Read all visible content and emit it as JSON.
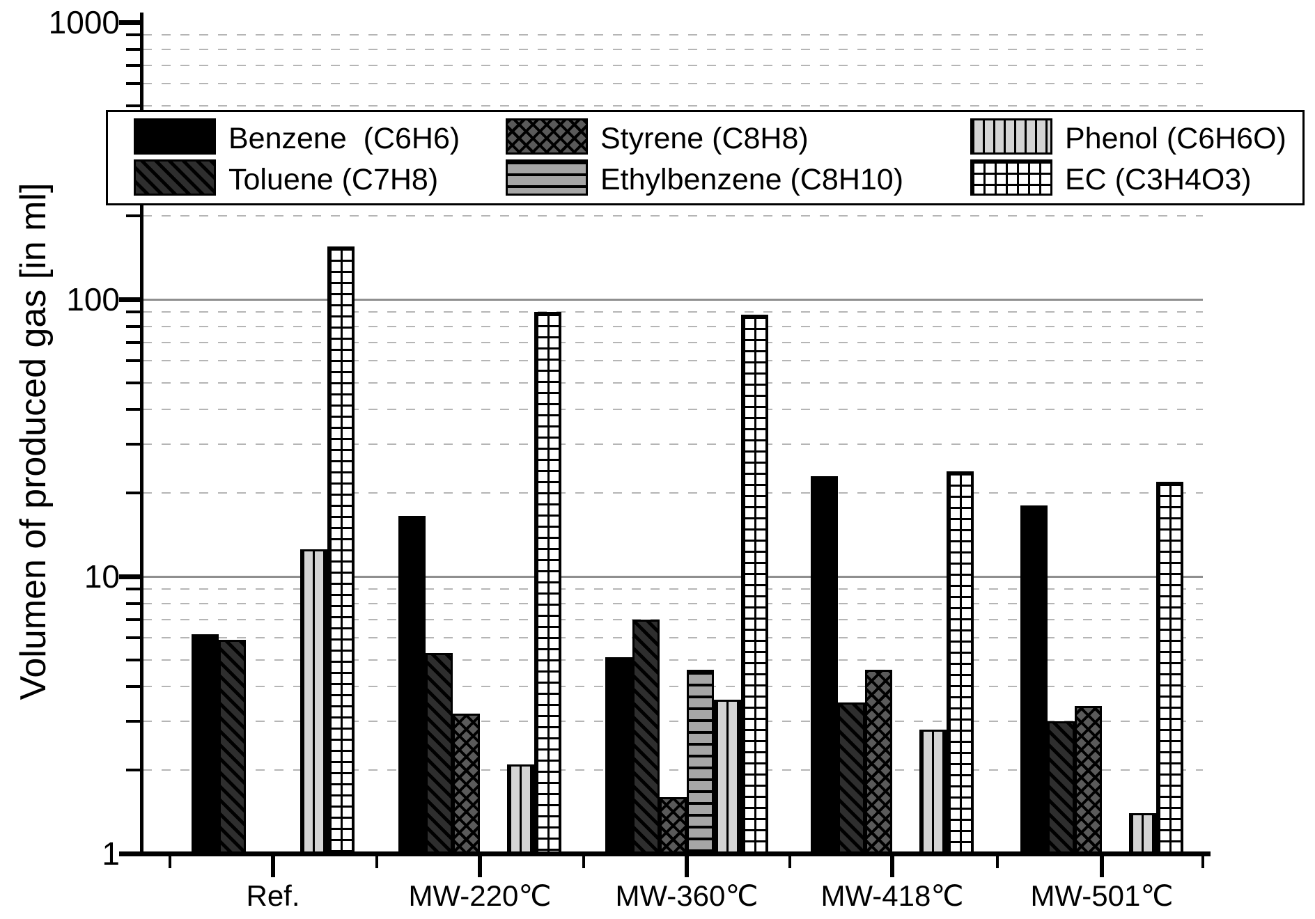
{
  "chart_data": {
    "type": "bar",
    "title": "",
    "xlabel": "",
    "ylabel": "Volumen of produced gas [in ml]",
    "yscale": "log",
    "ylim": [
      1,
      1000
    ],
    "ytick_labels": [
      "1",
      "10",
      "100",
      "1000"
    ],
    "grid": "major solid gray at decades, minor dashed gray at 2-9 steps",
    "legend_position": "top inside plot, 3 columns x 2 rows, boxed",
    "units": "ml",
    "categories": [
      "Ref.",
      "MW-220℃",
      "MW-360℃",
      "MW-418℃",
      "MW-501℃"
    ],
    "series": [
      {
        "name": "Benzene  (C6H6)",
        "pattern": "solid-black",
        "values": [
          6.2,
          16.5,
          5.1,
          23,
          18
        ]
      },
      {
        "name": "Toluene (C7H8)",
        "pattern": "diagonal-hatch",
        "values": [
          5.9,
          5.3,
          7.0,
          3.5,
          3.0
        ]
      },
      {
        "name": "Styrene (C8H8)",
        "pattern": "diamond-crosshatch",
        "values": [
          null,
          3.2,
          1.6,
          4.6,
          3.4
        ]
      },
      {
        "name": "Ethylbenzene (C8H10)",
        "pattern": "horizontal-lines",
        "values": [
          null,
          null,
          4.6,
          null,
          null
        ]
      },
      {
        "name": "Phenol (C6H6O)",
        "pattern": "vertical-lines",
        "values": [
          12.5,
          2.1,
          3.6,
          2.8,
          1.4
        ]
      },
      {
        "name": "EC (C3H4O3)",
        "pattern": "grid-checker",
        "values": [
          155,
          90,
          88,
          24,
          22
        ]
      }
    ],
    "colors": {
      "bar_outline": "#000000",
      "major_gridline": "#8f8f8f",
      "minor_gridline": "#b5b5b5",
      "background": "#ffffff"
    }
  }
}
